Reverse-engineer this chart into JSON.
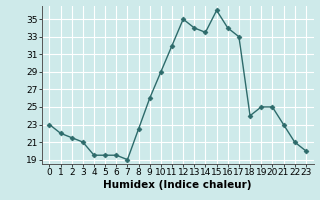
{
  "x": [
    0,
    1,
    2,
    3,
    4,
    5,
    6,
    7,
    8,
    9,
    10,
    11,
    12,
    13,
    14,
    15,
    16,
    17,
    18,
    19,
    20,
    21,
    22,
    23
  ],
  "y": [
    23,
    22,
    21.5,
    21,
    19.5,
    19.5,
    19.5,
    19,
    22.5,
    26,
    29,
    32,
    35,
    34,
    33.5,
    36,
    34,
    33,
    24,
    25,
    25,
    23,
    21,
    20
  ],
  "xlabel": "Humidex (Indice chaleur)",
  "line_color": "#2d6b6b",
  "marker": "D",
  "marker_size": 2.5,
  "bg_color": "#ceeaea",
  "grid_color": "#ffffff",
  "ylim": [
    18.5,
    36.5
  ],
  "yticks": [
    19,
    21,
    23,
    25,
    27,
    29,
    31,
    33,
    35
  ],
  "xticks": [
    0,
    1,
    2,
    3,
    4,
    5,
    6,
    7,
    8,
    9,
    10,
    11,
    12,
    13,
    14,
    15,
    16,
    17,
    18,
    19,
    20,
    21,
    22,
    23
  ],
  "tick_fontsize": 6.5,
  "xlabel_fontsize": 7.5
}
